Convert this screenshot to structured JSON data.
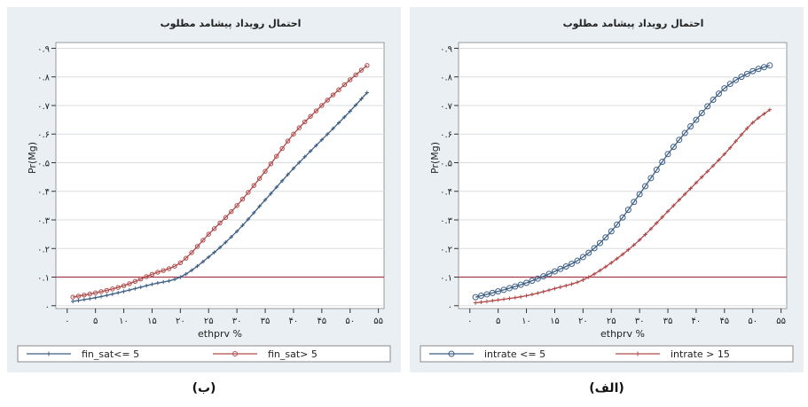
{
  "chart_data": [
    {
      "panel_label": "(ب)",
      "type": "line",
      "title": "احتمال رویداد پیشامد مطلوب",
      "xlabel": "ethprv %",
      "ylabel": "Pr(Mg)",
      "xlim": [
        -2,
        56
      ],
      "ylim": [
        -0.01,
        0.92
      ],
      "xticks": [
        0,
        5,
        10,
        15,
        20,
        25,
        30,
        35,
        40,
        45,
        50,
        55
      ],
      "xtick_labels": [
        "۰",
        "۵",
        "۱۰",
        "۱۵",
        "۲۰",
        "۲۵",
        "۳۰",
        "۳۵",
        "۴۰",
        "۴۵",
        "۵۰",
        "۵۵"
      ],
      "yticks": [
        0,
        0.1,
        0.2,
        0.3,
        0.4,
        0.5,
        0.6,
        0.7,
        0.8,
        0.9
      ],
      "ytick_labels": [
        "۰",
        "۰.۱",
        "۰.۲",
        "۰.۳",
        "۰.۴",
        "۰.۵",
        "۰.۶",
        "۰.۷",
        "۰.۸",
        "۰.۹"
      ],
      "grid": true,
      "reference_line_y": 0.1,
      "reference_color": "#a83a4a",
      "legend_position": "bottom",
      "series": [
        {
          "name": "fin_sat<= 5",
          "color": "#3e5f85",
          "marker": "plus",
          "x": [
            1,
            5,
            10,
            15,
            20,
            25,
            30,
            35,
            40,
            45,
            50,
            53
          ],
          "y": [
            0.015,
            0.028,
            0.05,
            0.075,
            0.1,
            0.17,
            0.26,
            0.37,
            0.48,
            0.58,
            0.68,
            0.745
          ]
        },
        {
          "name": "fin_sat> 5",
          "color": "#b04a4a",
          "marker": "square",
          "x": [
            1,
            5,
            10,
            15,
            20,
            25,
            30,
            35,
            40,
            45,
            50,
            53
          ],
          "y": [
            0.03,
            0.045,
            0.07,
            0.11,
            0.15,
            0.25,
            0.35,
            0.47,
            0.6,
            0.7,
            0.79,
            0.84
          ]
        }
      ]
    },
    {
      "panel_label": "(الف)",
      "type": "line",
      "title": "احتمال رویداد پیشامد مطلوب",
      "xlabel": "ethprv %",
      "ylabel": "Pr(Mg)",
      "xlim": [
        -2,
        56
      ],
      "ylim": [
        -0.01,
        0.92
      ],
      "xticks": [
        0,
        5,
        10,
        15,
        20,
        25,
        30,
        35,
        40,
        45,
        50,
        55
      ],
      "xtick_labels": [
        "۰",
        "۵",
        "۱۰",
        "۱۵",
        "۲۰",
        "۲۵",
        "۳۰",
        "۳۵",
        "۴۰",
        "۴۵",
        "۵۰",
        "۵۵"
      ],
      "yticks": [
        0,
        0.1,
        0.2,
        0.3,
        0.4,
        0.5,
        0.6,
        0.7,
        0.8,
        0.9
      ],
      "ytick_labels": [
        "۰",
        "۰.۱",
        "۰.۲",
        "۰.۳",
        "۰.۴",
        "۰.۵",
        "۰.۶",
        "۰.۷",
        "۰.۸",
        "۰.۹"
      ],
      "grid": true,
      "reference_line_y": 0.1,
      "reference_color": "#a83a4a",
      "legend_position": "bottom",
      "series": [
        {
          "name": "intrate <= 5",
          "color": "#3e5f85",
          "marker": "circle",
          "x": [
            1,
            5,
            10,
            15,
            20,
            25,
            30,
            35,
            40,
            45,
            50,
            53
          ],
          "y": [
            0.03,
            0.05,
            0.08,
            0.12,
            0.17,
            0.26,
            0.39,
            0.53,
            0.65,
            0.76,
            0.82,
            0.84
          ]
        },
        {
          "name": "intrate > 15",
          "color": "#b04a4a",
          "marker": "plus",
          "x": [
            1,
            5,
            10,
            15,
            20,
            25,
            30,
            35,
            40,
            45,
            50,
            53
          ],
          "y": [
            0.01,
            0.02,
            0.035,
            0.06,
            0.09,
            0.15,
            0.23,
            0.33,
            0.43,
            0.53,
            0.64,
            0.685
          ]
        }
      ]
    }
  ]
}
